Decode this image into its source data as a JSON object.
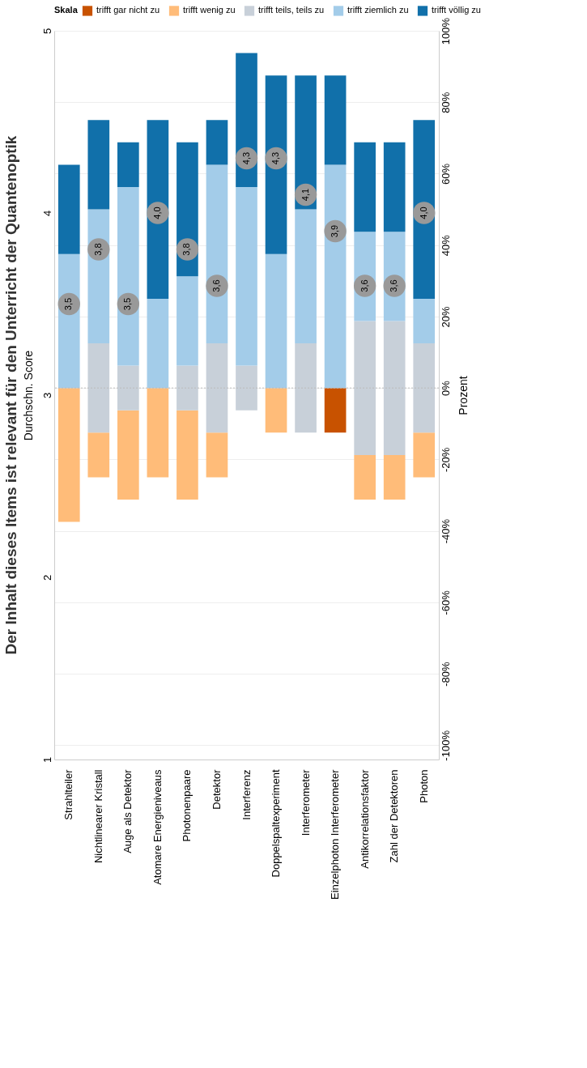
{
  "chart_data": {
    "type": "bar",
    "title": "Der Inhalt dieses Items ist relevant für den Unterricht der Quantenoptik",
    "categories": [
      "Strahlteiler",
      "Nichtlinearer Kristall",
      "Auge als Detektor",
      "Atomare Energieniveaus",
      "Photonenpaare",
      "Detektor",
      "Interferenz",
      "Doppelspaltexperiment",
      "Interferometer",
      "Einzelphoton Interferometer",
      "Antikorrelationsfaktor",
      "Zahl der Detektoren",
      "Photon"
    ],
    "series": [
      {
        "name": "trifft gar nicht zu",
        "color": "#c85200",
        "base": [
          null,
          null,
          null,
          null,
          null,
          null,
          null,
          null,
          null,
          -12.5,
          null,
          null,
          null
        ],
        "values": [
          null,
          null,
          null,
          null,
          null,
          null,
          null,
          null,
          null,
          12.5,
          null,
          null,
          null
        ]
      },
      {
        "name": "trifft wenig zu",
        "color": "#ffbc79",
        "base": [
          -37.5,
          -25,
          -31.25,
          -25,
          -31.25,
          -25,
          null,
          -12.5,
          null,
          null,
          -31.25,
          -31.25,
          -25
        ],
        "values": [
          37.5,
          12.5,
          25,
          25,
          25,
          12.5,
          null,
          12.5,
          null,
          null,
          12.5,
          12.5,
          12.5
        ]
      },
      {
        "name": "trifft teils, teils zu",
        "color": "#c8d0d9",
        "base": [
          null,
          -12.5,
          -6.25,
          null,
          -6.25,
          -12.5,
          -6.25,
          null,
          -12.5,
          null,
          -18.75,
          -18.75,
          -12.5
        ],
        "values": [
          null,
          25,
          12.5,
          null,
          12.5,
          25,
          12.5,
          null,
          25,
          null,
          37.5,
          37.5,
          25
        ]
      },
      {
        "name": "trifft ziemlich zu",
        "color": "#a3cce9",
        "base": [
          0,
          12.5,
          6.25,
          0,
          6.25,
          12.5,
          6.25,
          0,
          12.5,
          0,
          18.75,
          18.75,
          12.5
        ],
        "values": [
          37.5,
          37.5,
          50,
          25,
          25,
          50,
          50,
          37.5,
          37.5,
          62.5,
          25,
          25,
          12.5
        ]
      },
      {
        "name": "trifft völlig zu",
        "color": "#1170aa",
        "base": [
          37.5,
          50,
          56.25,
          25,
          31.25,
          62.5,
          56.25,
          37.5,
          50,
          62.5,
          43.75,
          43.75,
          25
        ],
        "values": [
          25,
          25,
          12.5,
          50,
          37.5,
          12.5,
          37.5,
          50,
          37.5,
          25,
          25,
          25,
          50
        ]
      },
      {
        "type": "scatter",
        "axis": "y2",
        "color": "#999999",
        "marker": "circle",
        "values": [
          3.5,
          3.8,
          3.5,
          4.0,
          3.8,
          3.6,
          4.3,
          4.3,
          4.1,
          3.9,
          3.6,
          3.6,
          4.0
        ],
        "value_labels": [
          "3,5",
          "3,8",
          "3,5",
          "4,0",
          "3,8",
          "3,6",
          "4,3",
          "4,3",
          "4,1",
          "3,9",
          "3,6",
          "3,6",
          "4,0"
        ]
      }
    ],
    "ylabel": "Prozent",
    "ylim": [
      -104,
      100
    ],
    "yticks": [
      {
        "value": -100,
        "label": "-100%"
      },
      {
        "value": -80,
        "label": "-80%"
      },
      {
        "value": -60,
        "label": "-60%"
      },
      {
        "value": -40,
        "label": "-40%"
      },
      {
        "value": -20,
        "label": "-20%"
      },
      {
        "value": 0,
        "label": "0%"
      },
      {
        "value": 20,
        "label": "20%"
      },
      {
        "value": 40,
        "label": "40%"
      },
      {
        "value": 60,
        "label": "60%"
      },
      {
        "value": 80,
        "label": "80%"
      },
      {
        "value": 100,
        "label": "100%"
      }
    ],
    "y2label": "Durchschn. Score",
    "y2lim": [
      1,
      5
    ],
    "y2ticks": [
      1,
      2,
      3,
      4,
      5
    ],
    "ref_lines": [
      {
        "axis": "y",
        "value": 0,
        "line_style": "dotted",
        "color": "#bbbbbb"
      }
    ],
    "grid": "y",
    "legend": "top right",
    "legend_title": "Skala"
  }
}
